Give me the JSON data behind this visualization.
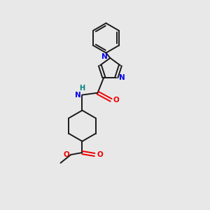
{
  "background_color": "#e8e8e8",
  "bond_color": "#1a1a1a",
  "N_color": "#0000ee",
  "O_color": "#ee0000",
  "H_color": "#008080",
  "line_width": 1.4,
  "figsize": [
    3.0,
    3.0
  ],
  "dpi": 100,
  "xlim": [
    0,
    10
  ],
  "ylim": [
    0,
    10
  ]
}
